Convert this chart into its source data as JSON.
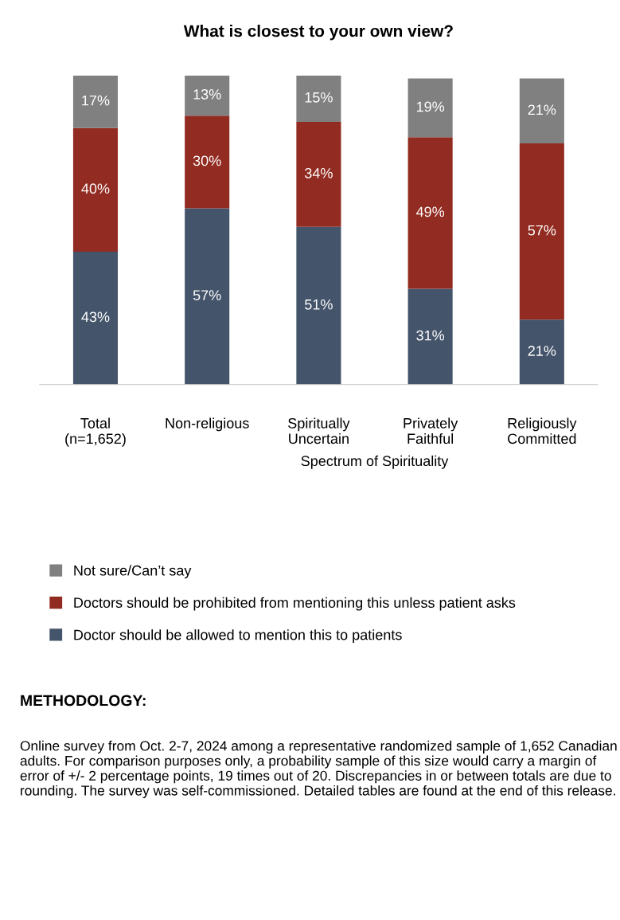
{
  "chart_data": {
    "type": "bar",
    "stacked": true,
    "title": "What is closest to your own view?",
    "categories": [
      "Total\n(n=1,652)",
      "Non-religious",
      "Spiritually\nUncertain",
      "Privately\nFaithful",
      "Religiously\nCommitted"
    ],
    "xlabel": "Spectrum of Spirituality",
    "series": [
      {
        "name": "Doctor should be allowed to mention this to patients",
        "color": "#44546a",
        "values": [
          43,
          57,
          51,
          31,
          21
        ],
        "value_labels": [
          "43%",
          "57%",
          "51%",
          "31%",
          "21%"
        ]
      },
      {
        "name": "Doctors should be prohibited from mentioning this unless patient asks",
        "color": "#922b21",
        "values": [
          40,
          30,
          34,
          49,
          57
        ],
        "value_labels": [
          "40%",
          "30%",
          "34%",
          "49%",
          "57%"
        ]
      },
      {
        "name": "Not sure/Can’t say",
        "color": "#808080",
        "values": [
          17,
          13,
          15,
          19,
          21
        ],
        "value_labels": [
          "17%",
          "13%",
          "15%",
          "19%",
          "21%"
        ]
      }
    ],
    "legend": "bottom",
    "grid": false,
    "annotations": [
      "METHODOLOGY:",
      "Online survey from Oct. 2-7, 2024 among a representative randomized sample of 1,652 Canadian adults. For comparison purposes only, a probability sample of this size would carry a margin of error of +/- 2 percentage points, 19 times out of 20. Discrepancies in or between totals are due to rounding. The survey was self-commissioned. Detailed tables are found at the end of this release."
    ]
  }
}
